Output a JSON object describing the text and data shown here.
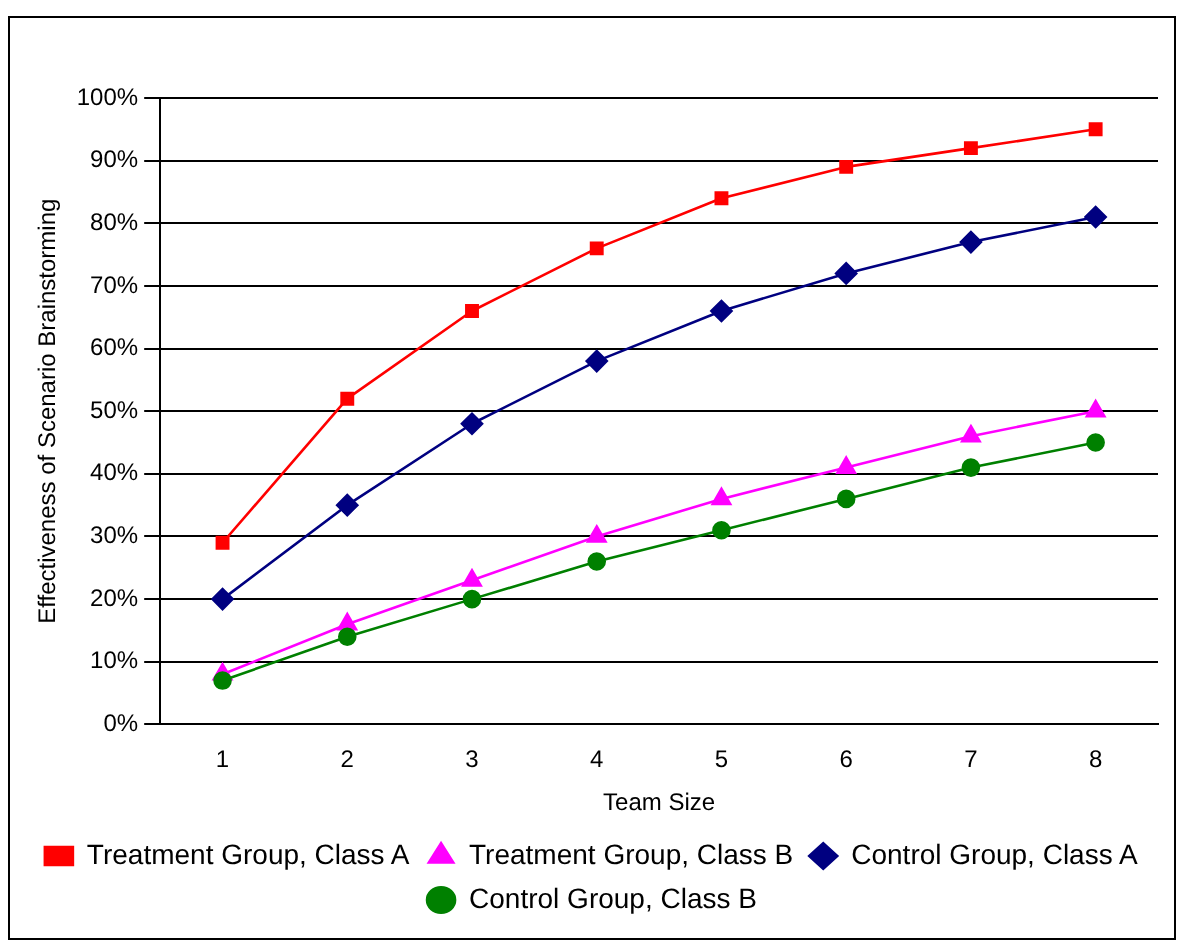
{
  "chart_data": {
    "type": "line",
    "xlabel": "Team Size",
    "ylabel": "Effectiveness of Scenario Brainstorming",
    "categories": [
      "1",
      "2",
      "3",
      "4",
      "5",
      "6",
      "7",
      "8"
    ],
    "series": [
      {
        "name": "Treatment Group, Class A",
        "color": "#ff0000",
        "marker": "square",
        "values": [
          29,
          52,
          66,
          76,
          84,
          89,
          92,
          95
        ]
      },
      {
        "name": "Treatment Group, Class B",
        "color": "#ff00ff",
        "marker": "triangle",
        "values": [
          8,
          16,
          23,
          30,
          36,
          41,
          46,
          50
        ]
      },
      {
        "name": "Control Group, Class A",
        "color": "#000080",
        "marker": "diamond",
        "values": [
          20,
          35,
          48,
          58,
          66,
          72,
          77,
          81
        ]
      },
      {
        "name": "Control Group, Class B",
        "color": "#008000",
        "marker": "circle",
        "values": [
          7,
          14,
          20,
          26,
          31,
          36,
          41,
          45
        ]
      }
    ],
    "ylim": [
      0,
      100
    ],
    "yticks": [
      {
        "value": 0,
        "label": "0%"
      },
      {
        "value": 10,
        "label": "10%"
      },
      {
        "value": 20,
        "label": "20%"
      },
      {
        "value": 30,
        "label": "30%"
      },
      {
        "value": 40,
        "label": "40%"
      },
      {
        "value": 50,
        "label": "50%"
      },
      {
        "value": 60,
        "label": "60%"
      },
      {
        "value": 70,
        "label": "70%"
      },
      {
        "value": 80,
        "label": "80%"
      },
      {
        "value": 90,
        "label": "90%"
      },
      {
        "value": 100,
        "label": "100%"
      }
    ],
    "grid": "y",
    "legend": "bottom",
    "line_style": "solid"
  }
}
